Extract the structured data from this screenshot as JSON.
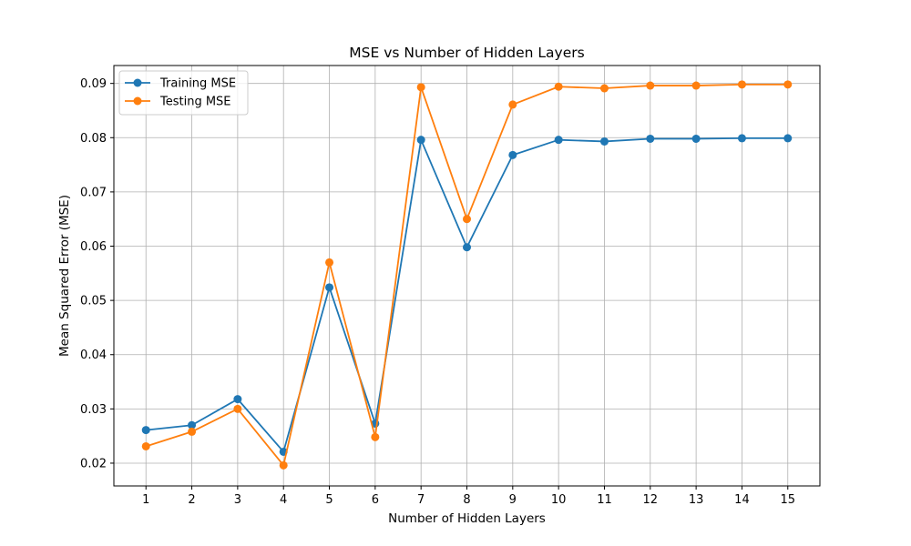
{
  "chart_data": {
    "type": "line",
    "title": "MSE vs Number of Hidden Layers",
    "xlabel": "Number of Hidden Layers",
    "ylabel": "Mean Squared Error (MSE)",
    "x": [
      1,
      2,
      3,
      4,
      5,
      6,
      7,
      8,
      9,
      10,
      11,
      12,
      13,
      14,
      15
    ],
    "xlim": [
      0.3,
      15.7
    ],
    "ylim": [
      0.0158,
      0.0933
    ],
    "yticks": [
      0.02,
      0.03,
      0.04,
      0.05,
      0.06,
      0.07,
      0.08,
      0.09
    ],
    "ytick_labels": [
      "0.02",
      "0.03",
      "0.04",
      "0.05",
      "0.06",
      "0.07",
      "0.08",
      "0.09"
    ],
    "grid": true,
    "legend_position": "top-left",
    "series": [
      {
        "name": "Training MSE",
        "color": "#1f77b4",
        "marker": "circle",
        "values": [
          0.0261,
          0.027,
          0.0318,
          0.0221,
          0.0524,
          0.0273,
          0.0796,
          0.0598,
          0.0768,
          0.0796,
          0.0793,
          0.0798,
          0.0798,
          0.0799,
          0.0799
        ]
      },
      {
        "name": "Testing MSE",
        "color": "#ff7f0e",
        "marker": "circle",
        "values": [
          0.0231,
          0.0258,
          0.03,
          0.0196,
          0.057,
          0.0248,
          0.0893,
          0.065,
          0.0861,
          0.0894,
          0.0891,
          0.0896,
          0.0896,
          0.0898,
          0.0898
        ]
      }
    ]
  }
}
